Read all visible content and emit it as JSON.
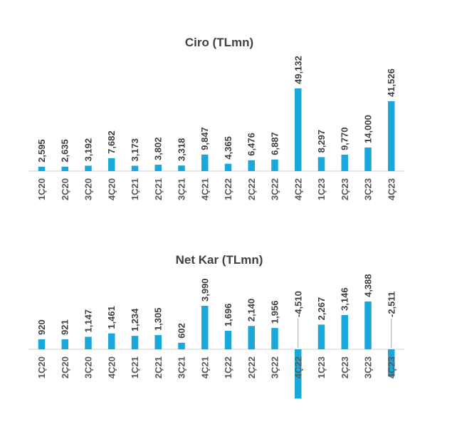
{
  "chart_data": [
    {
      "type": "bar",
      "title": "Ciro (TLmn)",
      "categories": [
        "1Ç20",
        "2Ç20",
        "3Ç20",
        "4Ç20",
        "1Ç21",
        "2Ç21",
        "3Ç21",
        "4Ç21",
        "1Ç22",
        "2Ç22",
        "3Ç22",
        "4Ç22",
        "1Ç23",
        "2Ç23",
        "3Ç23",
        "4Ç23"
      ],
      "values": [
        2595,
        2635,
        3192,
        7682,
        3173,
        3802,
        3318,
        9847,
        4365,
        6476,
        6887,
        49132,
        8297,
        9770,
        14000,
        41526
      ],
      "labels": [
        "2,595",
        "2,635",
        "3,192",
        "7,682",
        "3,173",
        "3,802",
        "3,318",
        "9,847",
        "4,365",
        "6,476",
        "6,887",
        "49,132",
        "8,297",
        "9,770",
        "14,000",
        "41,526"
      ],
      "bar_color": "#1aa7dc",
      "grid": false
    },
    {
      "type": "bar",
      "title": "Net Kar (TLmn)",
      "categories": [
        "1Ç20",
        "2Ç20",
        "3Ç20",
        "4Ç20",
        "1Ç21",
        "2Ç21",
        "3Ç21",
        "4Ç21",
        "1Ç22",
        "2Ç22",
        "3Ç22",
        "4Ç22",
        "1Ç23",
        "2Ç23",
        "3Ç23",
        "4Ç23"
      ],
      "values": [
        920,
        921,
        1147,
        1461,
        1234,
        1305,
        602,
        3990,
        1696,
        2140,
        1956,
        -4510,
        2267,
        3146,
        4388,
        -2511
      ],
      "labels": [
        "920",
        "921",
        "1,147",
        "1,461",
        "1,234",
        "1,305",
        "602",
        "3,990",
        "1,696",
        "2,140",
        "1,956",
        "-4,510",
        "2,267",
        "3,146",
        "4,388",
        "-2,511"
      ],
      "bar_color": "#1aa7dc",
      "grid": false
    }
  ]
}
